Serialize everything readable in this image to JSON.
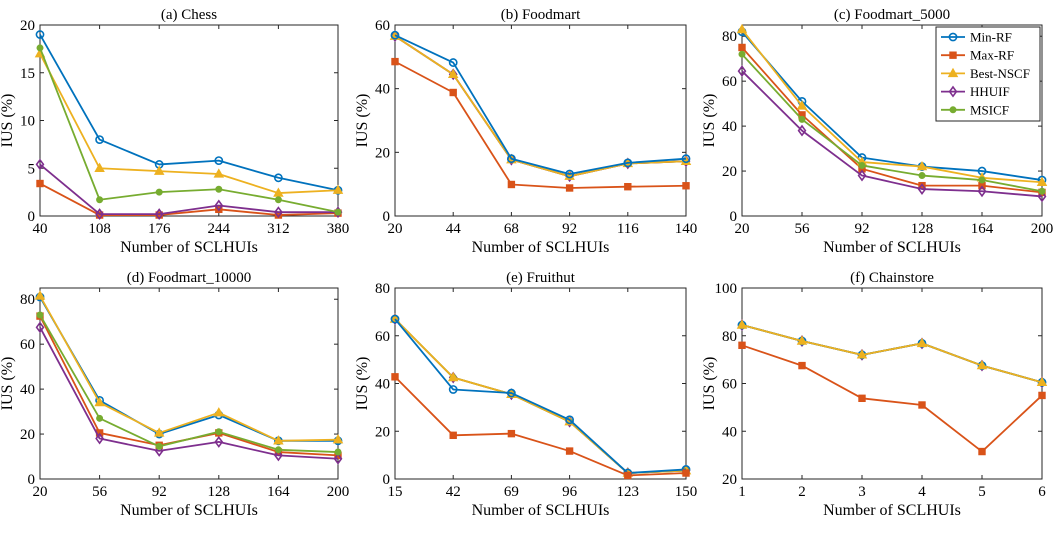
{
  "figure": {
    "colors": {
      "Min-RF": "#0072BD",
      "Max-RF": "#D95319",
      "Best-NSCF": "#EDB120",
      "HHUIF": "#7E2F8E",
      "MSICF": "#77AC30"
    },
    "markers": {
      "Min-RF": "circle",
      "Max-RF": "square",
      "Best-NSCF": "triangle",
      "HHUIF": "diamond",
      "MSICF": "dot"
    }
  },
  "chart_data": [
    {
      "type": "line",
      "title": "(a) Chess",
      "xlabel": "Number of SCLHUIs",
      "ylabel": "IUS (%)",
      "x": [
        40,
        108,
        176,
        244,
        312,
        380
      ],
      "xlim": [
        40,
        380
      ],
      "ylim": [
        0,
        20
      ],
      "yticks": [
        0,
        5,
        10,
        15,
        20
      ],
      "legend": false,
      "series": [
        {
          "name": "Min-RF",
          "values": [
            19,
            8,
            5.4,
            5.8,
            4,
            2.7
          ]
        },
        {
          "name": "Max-RF",
          "values": [
            3.4,
            0.1,
            0.1,
            0.7,
            0.1,
            0.3
          ]
        },
        {
          "name": "Best-NSCF",
          "values": [
            17,
            5,
            4.7,
            4.4,
            2.4,
            2.7
          ]
        },
        {
          "name": "HHUIF",
          "values": [
            5.4,
            0.2,
            0.2,
            1.1,
            0.4,
            0.4
          ]
        },
        {
          "name": "MSICF",
          "values": [
            17.6,
            1.7,
            2.5,
            2.8,
            1.7,
            0.4
          ]
        }
      ]
    },
    {
      "type": "line",
      "title": "(b) Foodmart",
      "xlabel": "Number of SCLHUIs",
      "ylabel": "IUS (%)",
      "x": [
        20,
        44,
        68,
        92,
        116,
        140
      ],
      "xlim": [
        20,
        140
      ],
      "ylim": [
        0,
        60
      ],
      "yticks": [
        0,
        20,
        40,
        60
      ],
      "legend": false,
      "series": [
        {
          "name": "MSICF",
          "values": [
            56.5,
            44.5,
            17.7,
            12.5,
            16.5,
            17.2
          ]
        },
        {
          "name": "HHUIF",
          "values": [
            56.5,
            44.5,
            17.7,
            12.5,
            16.5,
            17.2
          ]
        },
        {
          "name": "Best-NSCF",
          "values": [
            56.5,
            44.5,
            17.7,
            12.5,
            16.5,
            17.2
          ]
        },
        {
          "name": "Min-RF",
          "values": [
            56.8,
            48.2,
            18,
            13.2,
            16.7,
            18
          ]
        },
        {
          "name": "Max-RF",
          "values": [
            48.5,
            38.8,
            9.9,
            8.8,
            9.2,
            9.5
          ]
        }
      ]
    },
    {
      "type": "line",
      "title": "(c) Foodmart_5000",
      "xlabel": "Number of SCLHUIs",
      "ylabel": "IUS (%)",
      "x": [
        20,
        56,
        92,
        128,
        164,
        200
      ],
      "xlim": [
        20,
        200
      ],
      "ylim": [
        0,
        85
      ],
      "yticks": [
        0,
        20,
        40,
        60,
        80
      ],
      "legend": true,
      "legend_loc": "top-right",
      "legend_items": [
        "Min-RF",
        "Max-RF",
        "Best-NSCF",
        "HHUIF",
        "MSICF"
      ],
      "series": [
        {
          "name": "Min-RF",
          "values": [
            82,
            51,
            26,
            22,
            20,
            16
          ]
        },
        {
          "name": "Max-RF",
          "values": [
            75,
            45,
            21,
            13.5,
            13.5,
            10.5
          ]
        },
        {
          "name": "Best-NSCF",
          "values": [
            83,
            49,
            24,
            22,
            17,
            15
          ]
        },
        {
          "name": "HHUIF",
          "values": [
            64.5,
            38,
            18,
            12,
            11,
            8.7
          ]
        },
        {
          "name": "MSICF",
          "values": [
            72,
            43,
            22.5,
            18,
            16,
            11
          ]
        }
      ]
    },
    {
      "type": "line",
      "title": "(d) Foodmart_10000",
      "xlabel": "Number of SCLHUIs",
      "ylabel": "IUS (%)",
      "x": [
        20,
        56,
        92,
        128,
        164,
        200
      ],
      "xlim": [
        20,
        200
      ],
      "ylim": [
        0,
        85
      ],
      "yticks": [
        0,
        20,
        40,
        60,
        80
      ],
      "legend": false,
      "series": [
        {
          "name": "Min-RF",
          "values": [
            81,
            35,
            20,
            28.5,
            17,
            17
          ]
        },
        {
          "name": "Max-RF",
          "values": [
            72.5,
            20.5,
            15,
            20.5,
            12,
            10.5
          ]
        },
        {
          "name": "Best-NSCF",
          "values": [
            81.5,
            34,
            20.5,
            29.5,
            17,
            17.5
          ]
        },
        {
          "name": "HHUIF",
          "values": [
            67.5,
            18,
            12.5,
            16.5,
            10.5,
            9
          ]
        },
        {
          "name": "MSICF",
          "values": [
            73,
            27,
            14.5,
            21,
            13,
            12
          ]
        }
      ]
    },
    {
      "type": "line",
      "title": "(e) Fruithut",
      "xlabel": "Number of SCLHUIs",
      "ylabel": "IUS (%)",
      "x": [
        15,
        42,
        69,
        96,
        123,
        150
      ],
      "xlim": [
        15,
        150
      ],
      "ylim": [
        0,
        80
      ],
      "yticks": [
        0,
        20,
        40,
        60,
        80
      ],
      "legend": false,
      "series": [
        {
          "name": "HHUIF",
          "values": [
            67,
            42.5,
            35.5,
            24,
            2.5,
            3.5
          ]
        },
        {
          "name": "MSICF",
          "values": [
            67,
            42.5,
            35.5,
            24,
            2.5,
            3.5
          ]
        },
        {
          "name": "Best-NSCF",
          "values": [
            67,
            42.5,
            35.5,
            24,
            2.5,
            3.5
          ]
        },
        {
          "name": "Min-RF",
          "values": [
            67,
            37.5,
            36,
            24.8,
            2.5,
            4
          ]
        },
        {
          "name": "Max-RF",
          "values": [
            42.8,
            18.3,
            19,
            11.7,
            1.5,
            2.5
          ]
        }
      ]
    },
    {
      "type": "line",
      "title": "(f) Chainstore",
      "xlabel": "Number of SCLHUIs",
      "ylabel": "IUS (%)",
      "x": [
        1,
        2,
        3,
        4,
        5,
        6
      ],
      "xlim": [
        1,
        6
      ],
      "ylim": [
        20,
        100
      ],
      "yticks": [
        20,
        40,
        60,
        80,
        100
      ],
      "legend": false,
      "series": [
        {
          "name": "HHUIF",
          "values": [
            84.5,
            77.8,
            72,
            76.8,
            67.5,
            60.5
          ]
        },
        {
          "name": "MSICF",
          "values": [
            84.5,
            77.8,
            72,
            76.8,
            67.5,
            60.5
          ]
        },
        {
          "name": "Min-RF",
          "values": [
            84.5,
            77.8,
            72,
            76.8,
            67.5,
            60.5
          ]
        },
        {
          "name": "Best-NSCF",
          "values": [
            84.5,
            77.8,
            72,
            76.8,
            67.5,
            60.5
          ]
        },
        {
          "name": "Max-RF",
          "values": [
            76,
            67.5,
            53.8,
            51,
            31.5,
            55
          ]
        }
      ]
    }
  ]
}
